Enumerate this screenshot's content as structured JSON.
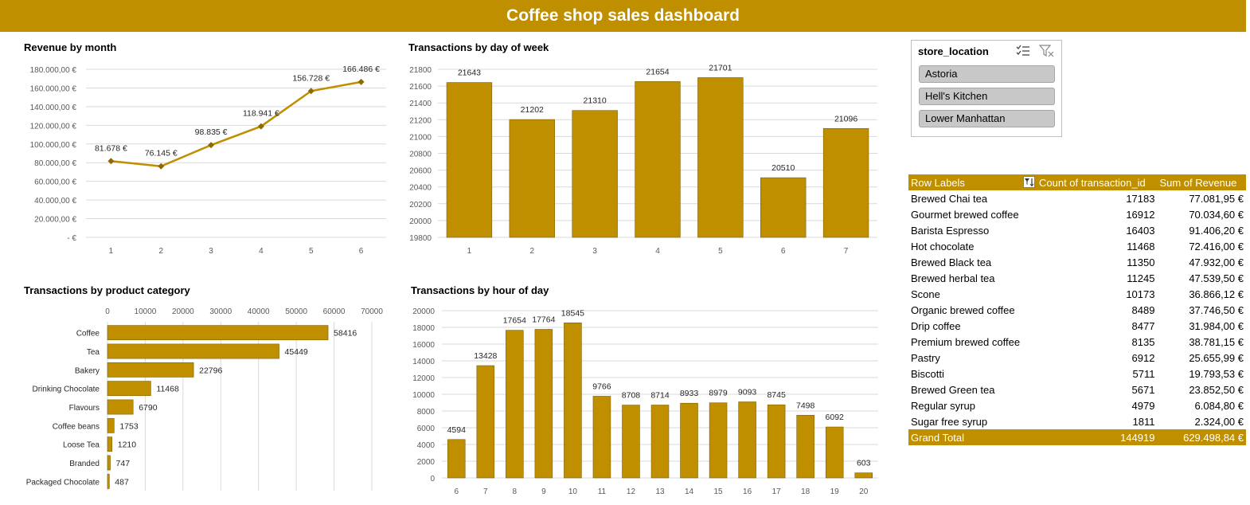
{
  "title": "Coffee shop sales dashboard",
  "colors": {
    "accent": "#BF8F00",
    "bar": "#BF8F00",
    "line": "#BF8F00",
    "marker": "#8C6A00"
  },
  "chart_data": [
    {
      "id": "revenue-by-month",
      "type": "line",
      "title": "Revenue by month",
      "categories": [
        "1",
        "2",
        "3",
        "4",
        "5",
        "6"
      ],
      "values": [
        81678,
        76145,
        98835,
        118941,
        156728,
        166486
      ],
      "data_labels": [
        "81.678 €",
        "76.145 €",
        "98.835 €",
        "118.941 €",
        "156.728 €",
        "166.486 €"
      ],
      "ylim": [
        0,
        180000
      ],
      "yticks": [
        0,
        20000,
        40000,
        60000,
        80000,
        100000,
        120000,
        140000,
        160000,
        180000
      ],
      "ytick_labels": [
        "-   €",
        "20.000,00 €",
        "40.000,00 €",
        "60.000,00 €",
        "80.000,00 €",
        "100.000,00 €",
        "120.000,00 €",
        "140.000,00 €",
        "160.000,00 €",
        "180.000,00 €"
      ],
      "grid": true
    },
    {
      "id": "transactions-by-day",
      "type": "bar",
      "title": "Transactions by  day of  week",
      "categories": [
        "1",
        "2",
        "3",
        "4",
        "5",
        "6",
        "7"
      ],
      "values": [
        21643,
        21202,
        21310,
        21654,
        21701,
        20510,
        21096
      ],
      "ylim": [
        19800,
        21800
      ],
      "yticks": [
        19800,
        20000,
        20200,
        20400,
        20600,
        20800,
        21000,
        21200,
        21400,
        21600,
        21800
      ],
      "grid": true
    },
    {
      "id": "transactions-by-category",
      "type": "bar",
      "orientation": "horizontal",
      "title": "Transactions by product category",
      "categories": [
        "Coffee",
        "Tea",
        "Bakery",
        "Drinking Chocolate",
        "Flavours",
        "Coffee beans",
        "Loose Tea",
        "Branded",
        "Packaged Chocolate"
      ],
      "values": [
        58416,
        45449,
        22796,
        11468,
        6790,
        1753,
        1210,
        747,
        487
      ],
      "xlim": [
        0,
        70000
      ],
      "xticks": [
        0,
        10000,
        20000,
        30000,
        40000,
        50000,
        60000,
        70000
      ],
      "grid": true
    },
    {
      "id": "transactions-by-hour",
      "type": "bar",
      "title": "Transactions by hour of day",
      "categories": [
        "6",
        "7",
        "8",
        "9",
        "10",
        "11",
        "12",
        "13",
        "14",
        "15",
        "16",
        "17",
        "18",
        "19",
        "20"
      ],
      "values": [
        4594,
        13428,
        17654,
        17764,
        18545,
        9766,
        8708,
        8714,
        8933,
        8979,
        9093,
        8745,
        7498,
        6092,
        603
      ],
      "ylim": [
        0,
        20000
      ],
      "yticks": [
        0,
        2000,
        4000,
        6000,
        8000,
        10000,
        12000,
        14000,
        16000,
        18000,
        20000
      ],
      "grid": true
    }
  ],
  "slicer": {
    "field": "store_location",
    "icons": [
      "multi-select-icon",
      "clear-filter-icon"
    ],
    "items": [
      "Astoria",
      "Hell's Kitchen",
      "Lower Manhattan"
    ]
  },
  "pivot": {
    "headers": [
      "Row Labels",
      "Count of transaction_id",
      "Sum of Revenue"
    ],
    "rows": [
      [
        "Brewed Chai tea",
        "17183",
        "77.081,95 €"
      ],
      [
        "Gourmet brewed coffee",
        "16912",
        "70.034,60 €"
      ],
      [
        "Barista Espresso",
        "16403",
        "91.406,20 €"
      ],
      [
        "Hot chocolate",
        "11468",
        "72.416,00 €"
      ],
      [
        "Brewed Black tea",
        "11350",
        "47.932,00 €"
      ],
      [
        "Brewed herbal tea",
        "11245",
        "47.539,50 €"
      ],
      [
        "Scone",
        "10173",
        "36.866,12 €"
      ],
      [
        "Organic brewed coffee",
        "8489",
        "37.746,50 €"
      ],
      [
        "Drip coffee",
        "8477",
        "31.984,00 €"
      ],
      [
        "Premium brewed coffee",
        "8135",
        "38.781,15 €"
      ],
      [
        "Pastry",
        "6912",
        "25.655,99 €"
      ],
      [
        "Biscotti",
        "5711",
        "19.793,53 €"
      ],
      [
        "Brewed Green tea",
        "5671",
        "23.852,50 €"
      ],
      [
        "Regular syrup",
        "4979",
        "6.084,80 €"
      ],
      [
        "Sugar free syrup",
        "1811",
        "2.324,00 €"
      ]
    ],
    "total": [
      "Grand Total",
      "144919",
      "629.498,84 €"
    ]
  }
}
